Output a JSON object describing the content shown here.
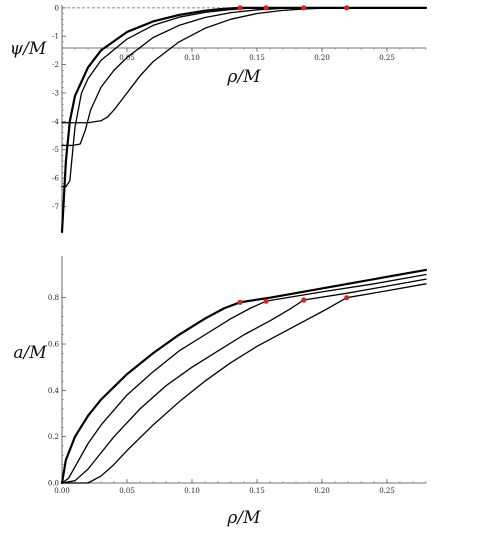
{
  "chart_data": [
    {
      "type": "line",
      "title": "",
      "xlabel": "ρ/M",
      "ylabel": "ψ/M",
      "xlim": [
        0,
        0.28
      ],
      "ylim": [
        -7.9,
        0.1
      ],
      "x_ticks": [
        "0.05",
        "0.10",
        "0.15",
        "0.20",
        "0.25"
      ],
      "y_ticks": [
        "0",
        "-1",
        "-2",
        "-3",
        "-4",
        "-5",
        "-6",
        "-7"
      ],
      "reference_line": {
        "y": 0,
        "style": "dashed"
      },
      "series": [
        {
          "style": "thick",
          "points": [
            [
              0.0,
              -7.9
            ],
            [
              0.003,
              -5.4
            ],
            [
              0.006,
              -4.0
            ],
            [
              0.01,
              -3.1
            ],
            [
              0.02,
              -2.1
            ],
            [
              0.03,
              -1.5
            ],
            [
              0.05,
              -0.85
            ],
            [
              0.07,
              -0.48
            ],
            [
              0.09,
              -0.25
            ],
            [
              0.11,
              -0.1
            ],
            [
              0.125,
              -0.03
            ],
            [
              0.137,
              0.0
            ],
            [
              0.28,
              0.0
            ]
          ],
          "marker": [
            0.137,
            0.0
          ]
        },
        {
          "style": "normal",
          "points": [
            [
              0.0,
              -6.3
            ],
            [
              0.003,
              -6.3
            ],
            [
              0.006,
              -6.1
            ],
            [
              0.01,
              -4.2
            ],
            [
              0.015,
              -3.0
            ],
            [
              0.02,
              -2.5
            ],
            [
              0.03,
              -1.85
            ],
            [
              0.05,
              -1.1
            ],
            [
              0.07,
              -0.62
            ],
            [
              0.09,
              -0.33
            ],
            [
              0.11,
              -0.16
            ],
            [
              0.13,
              -0.06
            ],
            [
              0.145,
              -0.01
            ],
            [
              0.157,
              0.0
            ],
            [
              0.28,
              0.0
            ]
          ],
          "marker": [
            0.157,
            0.0
          ]
        },
        {
          "style": "normal",
          "points": [
            [
              0.0,
              -4.85
            ],
            [
              0.008,
              -4.85
            ],
            [
              0.014,
              -4.8
            ],
            [
              0.018,
              -4.3
            ],
            [
              0.022,
              -3.6
            ],
            [
              0.03,
              -2.8
            ],
            [
              0.04,
              -2.2
            ],
            [
              0.05,
              -1.75
            ],
            [
              0.07,
              -1.05
            ],
            [
              0.09,
              -0.62
            ],
            [
              0.11,
              -0.34
            ],
            [
              0.13,
              -0.17
            ],
            [
              0.15,
              -0.07
            ],
            [
              0.17,
              -0.02
            ],
            [
              0.186,
              0.0
            ],
            [
              0.28,
              0.0
            ]
          ],
          "marker": [
            0.186,
            0.0
          ]
        },
        {
          "style": "normal",
          "points": [
            [
              0.0,
              -4.05
            ],
            [
              0.02,
              -4.05
            ],
            [
              0.03,
              -3.98
            ],
            [
              0.035,
              -3.85
            ],
            [
              0.04,
              -3.6
            ],
            [
              0.05,
              -3.0
            ],
            [
              0.06,
              -2.4
            ],
            [
              0.07,
              -1.9
            ],
            [
              0.09,
              -1.2
            ],
            [
              0.11,
              -0.72
            ],
            [
              0.13,
              -0.4
            ],
            [
              0.15,
              -0.2
            ],
            [
              0.17,
              -0.09
            ],
            [
              0.19,
              -0.03
            ],
            [
              0.205,
              -0.01
            ],
            [
              0.219,
              0.0
            ],
            [
              0.28,
              0.0
            ]
          ],
          "marker": [
            0.219,
            0.0
          ]
        }
      ]
    },
    {
      "type": "line",
      "title": "",
      "xlabel": "ρ/M",
      "ylabel": "a/M",
      "xlim": [
        0,
        0.28
      ],
      "ylim": [
        0,
        0.98
      ],
      "x_ticks": [
        "0.00",
        "0.05",
        "0.10",
        "0.15",
        "0.20",
        "0.25"
      ],
      "y_ticks": [
        "0.0",
        "0.2",
        "0.4",
        "0.6",
        "0.8"
      ],
      "series": [
        {
          "style": "thick",
          "points": [
            [
              0.0,
              0.0
            ],
            [
              0.003,
              0.1
            ],
            [
              0.01,
              0.2
            ],
            [
              0.02,
              0.29
            ],
            [
              0.03,
              0.36
            ],
            [
              0.05,
              0.47
            ],
            [
              0.07,
              0.56
            ],
            [
              0.09,
              0.64
            ],
            [
              0.11,
              0.71
            ],
            [
              0.125,
              0.755
            ],
            [
              0.137,
              0.78
            ],
            [
              0.16,
              0.8
            ],
            [
              0.2,
              0.84
            ],
            [
              0.24,
              0.88
            ],
            [
              0.28,
              0.92
            ]
          ],
          "marker": [
            0.137,
            0.78
          ]
        },
        {
          "style": "normal",
          "points": [
            [
              0.0,
              0.0
            ],
            [
              0.005,
              0.02
            ],
            [
              0.01,
              0.07
            ],
            [
              0.02,
              0.17
            ],
            [
              0.03,
              0.25
            ],
            [
              0.05,
              0.38
            ],
            [
              0.07,
              0.48
            ],
            [
              0.09,
              0.57
            ],
            [
              0.11,
              0.64
            ],
            [
              0.13,
              0.71
            ],
            [
              0.145,
              0.755
            ],
            [
              0.157,
              0.785
            ],
            [
              0.2,
              0.825
            ],
            [
              0.24,
              0.86
            ],
            [
              0.28,
              0.9
            ]
          ],
          "marker": [
            0.157,
            0.785
          ]
        },
        {
          "style": "normal",
          "points": [
            [
              0.0,
              0.0
            ],
            [
              0.01,
              0.01
            ],
            [
              0.02,
              0.06
            ],
            [
              0.03,
              0.13
            ],
            [
              0.04,
              0.2
            ],
            [
              0.06,
              0.32
            ],
            [
              0.08,
              0.42
            ],
            [
              0.1,
              0.5
            ],
            [
              0.12,
              0.57
            ],
            [
              0.14,
              0.64
            ],
            [
              0.16,
              0.7
            ],
            [
              0.175,
              0.75
            ],
            [
              0.186,
              0.79
            ],
            [
              0.22,
              0.82
            ],
            [
              0.25,
              0.85
            ],
            [
              0.28,
              0.88
            ]
          ],
          "marker": [
            0.186,
            0.79
          ]
        },
        {
          "style": "normal",
          "points": [
            [
              0.0,
              0.0
            ],
            [
              0.02,
              0.0
            ],
            [
              0.03,
              0.03
            ],
            [
              0.04,
              0.08
            ],
            [
              0.05,
              0.14
            ],
            [
              0.07,
              0.25
            ],
            [
              0.09,
              0.35
            ],
            [
              0.11,
              0.44
            ],
            [
              0.13,
              0.52
            ],
            [
              0.15,
              0.59
            ],
            [
              0.17,
              0.65
            ],
            [
              0.19,
              0.71
            ],
            [
              0.205,
              0.755
            ],
            [
              0.219,
              0.8
            ],
            [
              0.25,
              0.83
            ],
            [
              0.28,
              0.86
            ]
          ],
          "marker": [
            0.219,
            0.8
          ]
        }
      ]
    }
  ]
}
